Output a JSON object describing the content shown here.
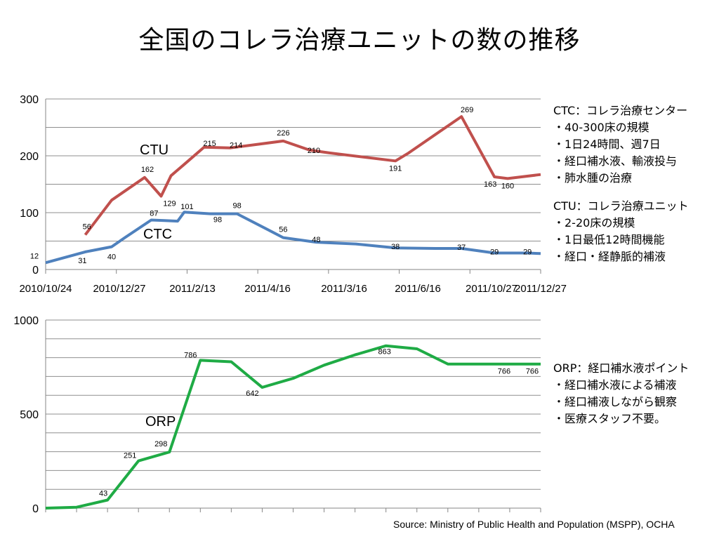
{
  "title": "全国のコレラ治療ユニットの数の推移",
  "source": "Source: Ministry of Public Health and Population (MSPP), OCHA",
  "colors": {
    "ctc": "#4f81bd",
    "ctu": "#c0504d",
    "orp": "#1fab45",
    "grid": "#868686"
  },
  "notes": {
    "ctc": [
      "CTC：コレラ治療センター",
      "・40-300床の規模",
      "・1日24時間、週7日",
      "・経口補水液、輸液投与",
      "・肺水腫の治療"
    ],
    "ctu": [
      "CTU：コレラ治療ユニット",
      "・2-20床の規模",
      "・1日最低12時間機能",
      "・経口・経静脈的補液"
    ],
    "orp": [
      "ORP：経口補水液ポイント",
      "・経口補水液による補液",
      "・経口補液しながら観察",
      "・医療スタッフ不要。"
    ]
  },
  "chart_data": [
    {
      "type": "line",
      "ylim": [
        0,
        300
      ],
      "yticks": [
        0,
        100,
        200,
        300
      ],
      "xtick_labels": [
        "2010/10/24",
        "2010/12/27",
        "2011/2/13",
        "2011/4/16",
        "2011/3/16",
        "2011/6/16",
        "2011/10/27",
        "2011/12/27"
      ],
      "grid": true,
      "series": [
        {
          "name": "CTU",
          "x": [
            0.6,
            1.0,
            1.5,
            1.75,
            1.9,
            2.1,
            2.4,
            2.8,
            3.6,
            4.0,
            4.3,
            5.3,
            5.5,
            6.3,
            6.8,
            7.0,
            7.5
          ],
          "values": [
            61,
            122,
            162,
            129,
            165,
            185,
            215,
            214,
            226,
            210,
            205,
            191,
            205,
            269,
            163,
            160,
            167
          ],
          "labels": [
            null,
            null,
            "162",
            "129",
            null,
            null,
            "215",
            "214",
            "226",
            "210",
            null,
            "191",
            null,
            "269",
            "163",
            "160",
            null
          ]
        },
        {
          "name": "CTC",
          "x": [
            0,
            0.6,
            1.0,
            1.2,
            1.6,
            1.8,
            2.0,
            2.1,
            2.5,
            2.9,
            3.6,
            4.1,
            4.7,
            5.3,
            5.9,
            6.3,
            6.8,
            7.3,
            7.5
          ],
          "values": [
            12,
            31,
            40,
            56,
            87,
            86,
            85,
            101,
            98,
            98,
            56,
            48,
            45,
            38,
            37,
            37,
            29,
            29,
            28
          ],
          "labels": [
            "12",
            "31",
            "40",
            "56",
            "87",
            null,
            null,
            "101",
            "98",
            "98",
            "56",
            "48",
            null,
            "38",
            null,
            "37",
            "29",
            "29",
            null
          ]
        }
      ],
      "series_labels": [
        "CTU",
        "CTC"
      ]
    },
    {
      "type": "line",
      "ylim": [
        0,
        1000
      ],
      "yticks": [
        0,
        500,
        1000
      ],
      "grid": true,
      "series": [
        {
          "name": "ORP",
          "x": [
            0,
            1,
            2,
            3,
            4,
            5,
            6,
            7,
            8,
            9,
            10,
            11,
            12,
            13,
            14,
            15,
            16
          ],
          "values": [
            0,
            5,
            43,
            251,
            298,
            786,
            778,
            642,
            690,
            760,
            815,
            863,
            847,
            766,
            766,
            766,
            766
          ],
          "labels": [
            null,
            null,
            "43",
            "251",
            "298",
            "786",
            null,
            "642",
            null,
            null,
            null,
            "863",
            null,
            null,
            null,
            "766",
            "766"
          ]
        }
      ],
      "series_labels": [
        "ORP"
      ]
    }
  ]
}
